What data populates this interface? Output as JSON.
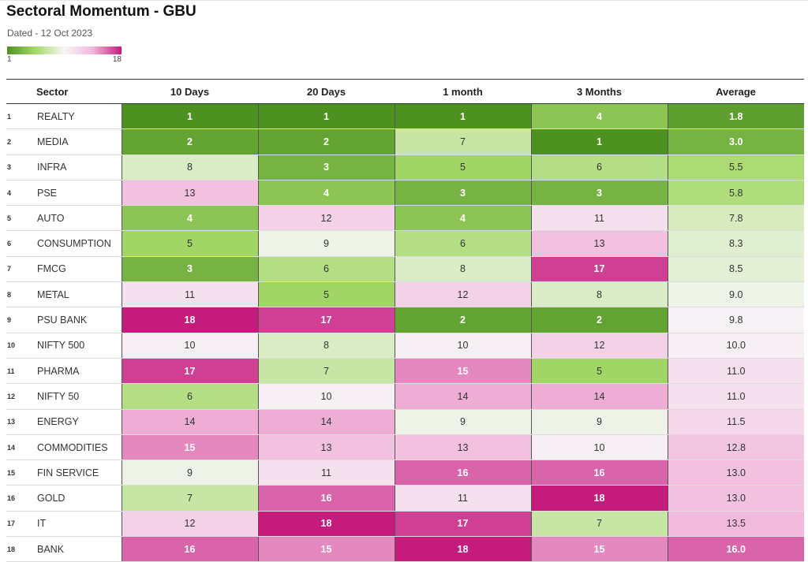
{
  "title": "Sectoral Momentum - GBU",
  "subtitle": "Dated - 12 Oct 2023",
  "legend": {
    "min_label": "1",
    "max_label": "18",
    "colors": [
      "#4d9221",
      "#a6d96a",
      "#f7f7f7",
      "#f1b6da",
      "#c51b7d"
    ]
  },
  "chart_data": {
    "type": "heatmap",
    "title": "Sectoral Momentum - GBU",
    "subtitle": "Dated - 12 Oct 2023",
    "columns": [
      "Sector",
      "10 Days",
      "20 Days",
      "1 month",
      "3 Months",
      "Average"
    ],
    "color_scale": {
      "min": 1,
      "max": 18,
      "low_color": "#4d9221",
      "mid_color": "#f7f7f7",
      "high_color": "#c51b7d"
    },
    "rows": [
      {
        "index": "1",
        "sector": "REALTY",
        "values": [
          "1",
          "1",
          "1",
          "4",
          "1.8"
        ]
      },
      {
        "index": "2",
        "sector": "MEDIA",
        "values": [
          "2",
          "2",
          "7",
          "1",
          "3.0"
        ]
      },
      {
        "index": "3",
        "sector": "INFRA",
        "values": [
          "8",
          "3",
          "5",
          "6",
          "5.5"
        ]
      },
      {
        "index": "4",
        "sector": "PSE",
        "values": [
          "13",
          "4",
          "3",
          "3",
          "5.8"
        ]
      },
      {
        "index": "5",
        "sector": "AUTO",
        "values": [
          "4",
          "12",
          "4",
          "11",
          "7.8"
        ]
      },
      {
        "index": "6",
        "sector": "CONSUMPTION",
        "values": [
          "5",
          "9",
          "6",
          "13",
          "8.3"
        ]
      },
      {
        "index": "7",
        "sector": "FMCG",
        "values": [
          "3",
          "6",
          "8",
          "17",
          "8.5"
        ]
      },
      {
        "index": "8",
        "sector": "METAL",
        "values": [
          "11",
          "5",
          "12",
          "8",
          "9.0"
        ]
      },
      {
        "index": "9",
        "sector": "PSU BANK",
        "values": [
          "18",
          "17",
          "2",
          "2",
          "9.8"
        ]
      },
      {
        "index": "10",
        "sector": "NIFTY 500",
        "values": [
          "10",
          "8",
          "10",
          "12",
          "10.0"
        ]
      },
      {
        "index": "11",
        "sector": "PHARMA",
        "values": [
          "17",
          "7",
          "15",
          "5",
          "11.0"
        ]
      },
      {
        "index": "12",
        "sector": "NIFTY 50",
        "values": [
          "6",
          "10",
          "14",
          "14",
          "11.0"
        ]
      },
      {
        "index": "13",
        "sector": "ENERGY",
        "values": [
          "14",
          "14",
          "9",
          "9",
          "11.5"
        ]
      },
      {
        "index": "14",
        "sector": "COMMODITIES",
        "values": [
          "15",
          "13",
          "13",
          "10",
          "12.8"
        ]
      },
      {
        "index": "15",
        "sector": "FIN SERVICE",
        "values": [
          "9",
          "11",
          "16",
          "16",
          "13.0"
        ]
      },
      {
        "index": "16",
        "sector": "GOLD",
        "values": [
          "7",
          "16",
          "11",
          "18",
          "13.0"
        ]
      },
      {
        "index": "17",
        "sector": "IT",
        "values": [
          "12",
          "18",
          "17",
          "7",
          "13.5"
        ]
      },
      {
        "index": "18",
        "sector": "BANK",
        "values": [
          "16",
          "15",
          "18",
          "15",
          "16.0"
        ]
      }
    ]
  }
}
